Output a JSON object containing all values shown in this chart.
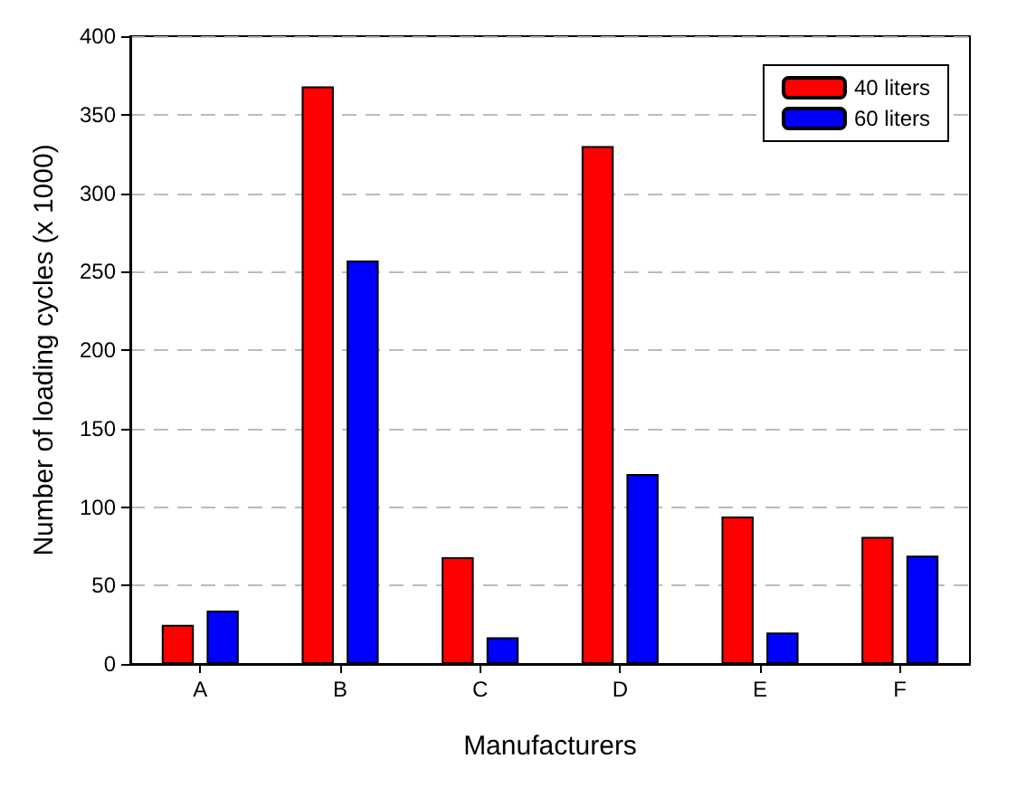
{
  "chart_data": {
    "type": "bar",
    "xlabel": "Manufacturers",
    "ylabel": "Number of loading cycles (x 1000)",
    "categories": [
      "A",
      "B",
      "C",
      "D",
      "E",
      "F"
    ],
    "series": [
      {
        "name": "40 liters",
        "color": "#ff0000",
        "values": [
          25,
          368,
          68,
          330,
          94,
          81
        ]
      },
      {
        "name": "60 liters",
        "color": "#0000ff",
        "values": [
          34,
          257,
          17,
          121,
          20,
          69
        ]
      }
    ],
    "ylim": [
      0,
      400
    ],
    "yticks": [
      0,
      50,
      100,
      150,
      200,
      250,
      300,
      350,
      400
    ],
    "grid": "y",
    "legend": "top right"
  }
}
